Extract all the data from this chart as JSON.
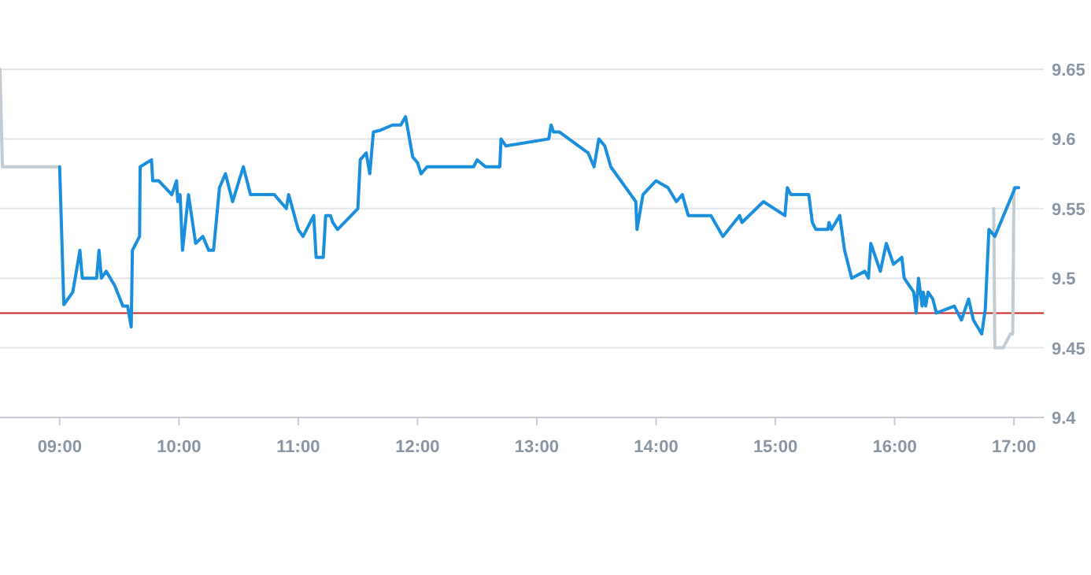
{
  "chart_data": {
    "type": "line",
    "x": [
      9,
      9.035,
      9.11,
      9.17,
      9.19,
      9.31,
      9.33,
      9.35,
      9.39,
      9.46,
      9.53,
      9.57,
      9.6,
      9.61,
      9.67,
      9.675,
      9.77,
      9.78,
      9.83,
      9.94,
      9.98,
      9.99,
      10.01,
      10.03,
      10.08,
      10.14,
      10.2,
      10.25,
      10.29,
      10.34,
      10.39,
      10.45,
      10.54,
      10.6,
      10.8,
      10.9,
      10.92,
      11,
      11.04,
      11.13,
      11.14,
      11.15,
      11.21,
      11.23,
      11.27,
      11.29,
      11.33,
      11.5,
      11.52,
      11.57,
      11.6,
      11.63,
      11.68,
      11.79,
      11.86,
      11.9,
      11.96,
      12,
      12.03,
      12.08,
      12.47,
      12.5,
      12.57,
      12.69,
      12.7,
      12.74,
      13.1,
      13.12,
      13.14,
      13.19,
      13.43,
      13.48,
      13.52,
      13.57,
      13.62,
      13.83,
      13.84,
      13.89,
      14,
      14.1,
      14.17,
      14.22,
      14.27,
      14.46,
      14.56,
      14.7,
      14.72,
      14.9,
      15.08,
      15.1,
      15.13,
      15.28,
      15.31,
      15.34,
      15.44,
      15.45,
      15.47,
      15.54,
      15.58,
      15.64,
      15.75,
      15.78,
      15.8,
      15.88,
      15.93,
      15.99,
      16.06,
      16.08,
      16.16,
      16.18,
      16.2,
      16.23,
      16.24,
      16.26,
      16.28,
      16.32,
      16.35,
      16.5,
      16.56,
      16.62,
      16.66,
      16.73,
      16.76,
      16.79,
      16.84,
      17.01,
      17.04
    ],
    "series": [
      {
        "color": "#c3cbd3",
        "x": [
          8.5,
          8.52,
          9,
          16.83,
          16.84,
          16.91,
          16.97,
          16.99,
          17
        ],
        "values": [
          9.65,
          9.58,
          9.58,
          null,
          9.45,
          9.45,
          9.46,
          9.46,
          9.565
        ]
      },
      {
        "color": "#c3cbd3",
        "x": [
          16.83,
          16.84
        ],
        "values": [
          9.55,
          9.45
        ]
      },
      {
        "color": "#1a8fdd",
        "values": [
          9.58,
          9.481,
          9.49,
          9.52,
          9.5,
          9.5,
          9.52,
          9.5,
          9.505,
          9.495,
          9.48,
          9.48,
          9.465,
          9.52,
          9.53,
          9.58,
          9.585,
          9.57,
          9.57,
          9.56,
          9.57,
          9.555,
          9.56,
          9.52,
          9.56,
          9.525,
          9.53,
          9.52,
          9.52,
          9.565,
          9.575,
          9.555,
          9.58,
          9.56,
          9.56,
          9.55,
          9.56,
          9.535,
          9.53,
          9.545,
          9.53,
          9.515,
          9.515,
          9.545,
          9.545,
          9.54,
          9.535,
          9.55,
          9.585,
          9.59,
          9.575,
          9.605,
          9.606,
          9.61,
          9.61,
          9.616,
          9.587,
          9.583,
          9.575,
          9.58,
          9.58,
          9.585,
          9.58,
          9.58,
          9.6,
          9.595,
          9.6,
          9.61,
          9.605,
          9.605,
          9.59,
          9.58,
          9.6,
          9.595,
          9.58,
          9.555,
          9.535,
          9.56,
          9.57,
          9.565,
          9.555,
          9.56,
          9.545,
          9.545,
          9.53,
          9.545,
          9.54,
          9.555,
          9.545,
          9.565,
          9.56,
          9.56,
          9.54,
          9.535,
          9.535,
          9.54,
          9.535,
          9.545,
          9.52,
          9.5,
          9.505,
          9.5,
          9.525,
          9.505,
          9.525,
          9.51,
          9.515,
          9.5,
          9.49,
          9.475,
          9.5,
          9.48,
          9.49,
          9.48,
          9.49,
          9.485,
          9.475,
          9.48,
          9.47,
          9.485,
          9.47,
          9.46,
          9.478,
          9.535,
          9.53,
          9.565,
          9.565
        ]
      }
    ],
    "xlim": [
      8.5,
      17.25
    ],
    "ylim": [
      9.4,
      9.65
    ],
    "xticks": [
      {
        "value": 9,
        "label": "09:00"
      },
      {
        "value": 10,
        "label": "10:00"
      },
      {
        "value": 11,
        "label": "11:00"
      },
      {
        "value": 12,
        "label": "12:00"
      },
      {
        "value": 13,
        "label": "13:00"
      },
      {
        "value": 14,
        "label": "14:00"
      },
      {
        "value": 15,
        "label": "15:00"
      },
      {
        "value": 16,
        "label": "16:00"
      },
      {
        "value": 17,
        "label": "17:00"
      }
    ],
    "yticks": [
      {
        "value": 9.4,
        "label": "9.4"
      },
      {
        "value": 9.45,
        "label": "9.45"
      },
      {
        "value": 9.5,
        "label": "9.5"
      },
      {
        "value": 9.55,
        "label": "9.55"
      },
      {
        "value": 9.6,
        "label": "9.6"
      },
      {
        "value": 9.65,
        "label": "9.65"
      }
    ],
    "ref_lines": [
      {
        "axis": "y",
        "value": 9.475,
        "color": "#c62828"
      }
    ],
    "grid": "y",
    "marker": "none",
    "line_style": "solid"
  }
}
